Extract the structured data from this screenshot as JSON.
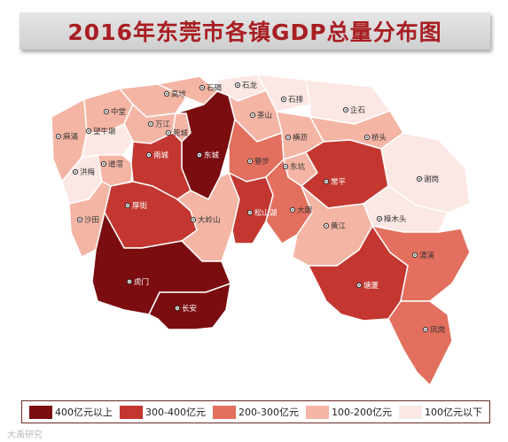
{
  "title": "2016年东莞市各镇GDP总量分布图",
  "colors": {
    "c400plus": "#7b0c10",
    "c300_400": "#c33730",
    "c200_300": "#e36f5e",
    "c100_200": "#f4b5a5",
    "c100below": "#fbe7e4",
    "border": "#ffffff",
    "title_text": "#a81e22"
  },
  "legend": [
    {
      "label": "400亿元以上",
      "color": "#7b0c10"
    },
    {
      "label": "300-400亿元",
      "color": "#c33730"
    },
    {
      "label": "200-300亿元",
      "color": "#e36f5e"
    },
    {
      "label": "100-200亿元",
      "color": "#f4b5a5"
    },
    {
      "label": "100亿元以下",
      "color": "#fbe7e4"
    }
  ],
  "towns": [
    {
      "name": "中堂",
      "tier": "100-200亿元"
    },
    {
      "name": "高埗",
      "tier": "100-200亿元"
    },
    {
      "name": "石碣",
      "tier": "100-200亿元"
    },
    {
      "name": "石龙",
      "tier": "100亿元以下"
    },
    {
      "name": "石排",
      "tier": "100亿元以下"
    },
    {
      "name": "麻涌",
      "tier": "100-200亿元"
    },
    {
      "name": "望牛墩",
      "tier": "100亿元以下"
    },
    {
      "name": "万江",
      "tier": "100-200亿元"
    },
    {
      "name": "茶山",
      "tier": "100-200亿元"
    },
    {
      "name": "企石",
      "tier": "100亿元以下"
    },
    {
      "name": "莞城",
      "tier": "100-200亿元"
    },
    {
      "name": "南城",
      "tier": "300-400亿元"
    },
    {
      "name": "东城",
      "tier": "400亿元以上"
    },
    {
      "name": "寮步",
      "tier": "200-300亿元"
    },
    {
      "name": "横沥",
      "tier": "100-200亿元"
    },
    {
      "name": "桥头",
      "tier": "100-200亿元"
    },
    {
      "name": "洪梅",
      "tier": "100亿元以下"
    },
    {
      "name": "道滘",
      "tier": "100-200亿元"
    },
    {
      "name": "东坑",
      "tier": "100-200亿元"
    },
    {
      "name": "常平",
      "tier": "300-400亿元"
    },
    {
      "name": "谢岗",
      "tier": "100亿元以下"
    },
    {
      "name": "厚街",
      "tier": "300-400亿元"
    },
    {
      "name": "松山湖",
      "tier": "300-400亿元"
    },
    {
      "name": "大朗",
      "tier": "200-300亿元"
    },
    {
      "name": "沙田",
      "tier": "100-200亿元"
    },
    {
      "name": "大岭山",
      "tier": "100-200亿元"
    },
    {
      "name": "黄江",
      "tier": "100-200亿元"
    },
    {
      "name": "樟木头",
      "tier": "100亿元以下"
    },
    {
      "name": "虎门",
      "tier": "400亿元以上"
    },
    {
      "name": "长安",
      "tier": "400亿元以上"
    },
    {
      "name": "塘厦",
      "tier": "300-400亿元"
    },
    {
      "name": "清溪",
      "tier": "200-300亿元"
    },
    {
      "name": "凤岗",
      "tier": "200-300亿元"
    }
  ],
  "watermark": "大禹研究"
}
